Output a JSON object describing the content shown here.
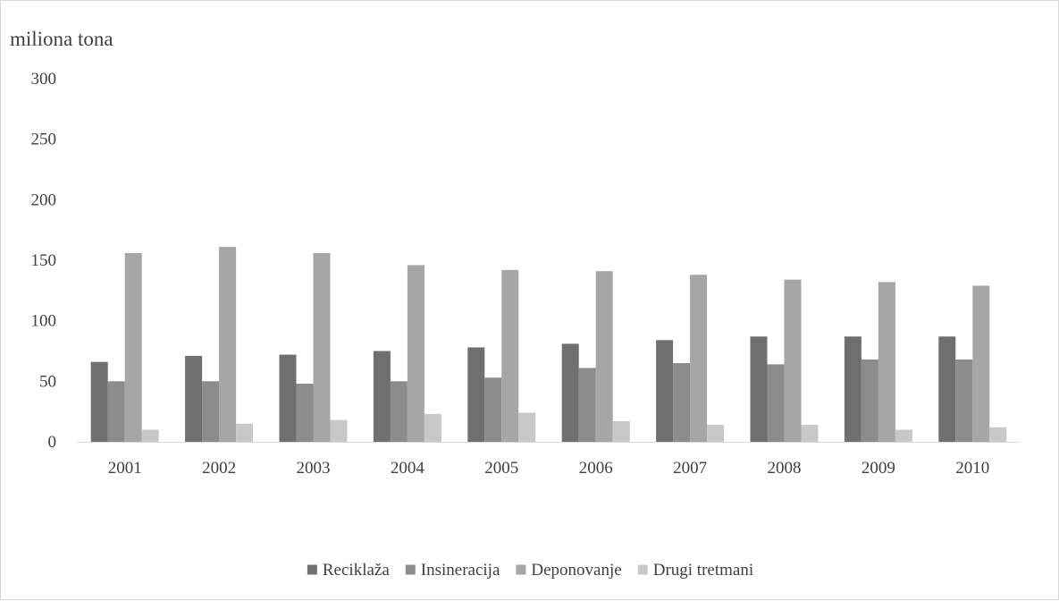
{
  "chart_data": {
    "type": "bar",
    "title": "",
    "xlabel": "",
    "ylabel": "miliona tona",
    "ylim": [
      0,
      300
    ],
    "yticks": [
      0,
      50,
      100,
      150,
      200,
      250,
      300
    ],
    "grid": false,
    "legend_position": "bottom",
    "categories": [
      "2001",
      "2002",
      "2003",
      "2004",
      "2005",
      "2006",
      "2007",
      "2008",
      "2009",
      "2010"
    ],
    "series": [
      {
        "name": "Reciklaža",
        "color": "#6f6f6f",
        "values": [
          66,
          71,
          72,
          75,
          78,
          81,
          84,
          87,
          87,
          87
        ]
      },
      {
        "name": "Insineracija",
        "color": "#8c8c8c",
        "values": [
          50,
          50,
          48,
          50,
          53,
          61,
          65,
          64,
          68,
          68
        ]
      },
      {
        "name": "Deponovanje",
        "color": "#a6a6a6",
        "values": [
          156,
          161,
          156,
          146,
          142,
          141,
          138,
          134,
          132,
          129
        ]
      },
      {
        "name": "Drugi tretmani",
        "color": "#c8c8c8",
        "values": [
          10,
          15,
          18,
          23,
          24,
          17,
          14,
          14,
          10,
          12
        ]
      }
    ]
  }
}
